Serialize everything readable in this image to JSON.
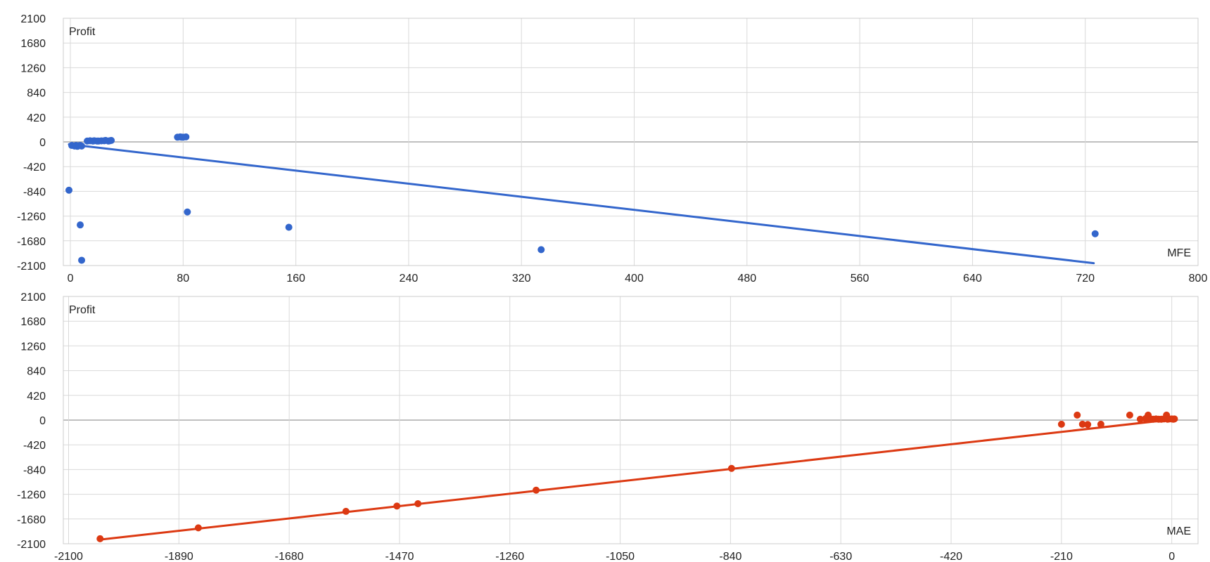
{
  "chart_data": [
    {
      "type": "scatter",
      "ylabel": "Profit",
      "xlabel": "MFE",
      "xlim": [
        -5,
        800
      ],
      "ylim": [
        -2100,
        2100
      ],
      "xticks": [
        "0",
        "80",
        "160",
        "240",
        "320",
        "400",
        "480",
        "560",
        "640",
        "720",
        "800"
      ],
      "yticks": [
        "2100",
        "1680",
        "1260",
        "840",
        "420",
        "0",
        "-420",
        "-840",
        "-1260",
        "-1680",
        "-2100"
      ],
      "grid": true,
      "color": "#3366cc",
      "points": [
        [
          -1,
          -820
        ],
        [
          1,
          -60
        ],
        [
          3,
          -70
        ],
        [
          4,
          -60
        ],
        [
          5,
          -75
        ],
        [
          6,
          -65
        ],
        [
          7,
          -60
        ],
        [
          8,
          -70
        ],
        [
          7,
          -1410
        ],
        [
          8,
          -2010
        ],
        [
          12,
          15
        ],
        [
          14,
          20
        ],
        [
          16,
          15
        ],
        [
          17,
          20
        ],
        [
          19,
          15
        ],
        [
          20,
          15
        ],
        [
          22,
          18
        ],
        [
          24,
          20
        ],
        [
          25,
          25
        ],
        [
          27,
          15
        ],
        [
          28,
          20
        ],
        [
          29,
          25
        ],
        [
          76,
          80
        ],
        [
          78,
          85
        ],
        [
          79,
          80
        ],
        [
          80,
          80
        ],
        [
          82,
          85
        ],
        [
          83,
          -1190
        ],
        [
          155,
          -1450
        ],
        [
          334,
          -1830
        ],
        [
          727,
          -1560
        ]
      ],
      "trendline": [
        [
          -1,
          -40
        ],
        [
          726,
          -2060
        ]
      ]
    },
    {
      "type": "scatter",
      "ylabel": "Profit",
      "xlabel": "MAE",
      "xlim": [
        -2110,
        50
      ],
      "ylim": [
        -2100,
        2100
      ],
      "xticks": [
        "-2100",
        "-1890",
        "-1680",
        "-1470",
        "-1260",
        "-1050",
        "-840",
        "-630",
        "-420",
        "-210",
        "0"
      ],
      "yticks": [
        "2100",
        "1680",
        "1260",
        "840",
        "420",
        "0",
        "-420",
        "-840",
        "-1260",
        "-1680",
        "-2100"
      ],
      "grid": true,
      "color": "#dc3912",
      "points": [
        [
          -2040,
          -2015
        ],
        [
          -1853,
          -1830
        ],
        [
          -1572,
          -1550
        ],
        [
          -1475,
          -1460
        ],
        [
          -1435,
          -1420
        ],
        [
          -1210,
          -1190
        ],
        [
          -838,
          -820
        ],
        [
          -210,
          -70
        ],
        [
          -180,
          85
        ],
        [
          -170,
          -70
        ],
        [
          -160,
          -75
        ],
        [
          -135,
          -70
        ],
        [
          -80,
          85
        ],
        [
          -60,
          15
        ],
        [
          -50,
          25
        ],
        [
          -45,
          85
        ],
        [
          -40,
          20
        ],
        [
          -35,
          15
        ],
        [
          -30,
          20
        ],
        [
          -25,
          15
        ],
        [
          -20,
          15
        ],
        [
          -15,
          20
        ],
        [
          -10,
          85
        ],
        [
          -8,
          15
        ],
        [
          -5,
          20
        ],
        [
          0,
          20
        ],
        [
          3,
          15
        ],
        [
          5,
          20
        ]
      ],
      "trendline": [
        [
          -2040,
          -2030
        ],
        [
          0,
          10
        ]
      ]
    }
  ]
}
